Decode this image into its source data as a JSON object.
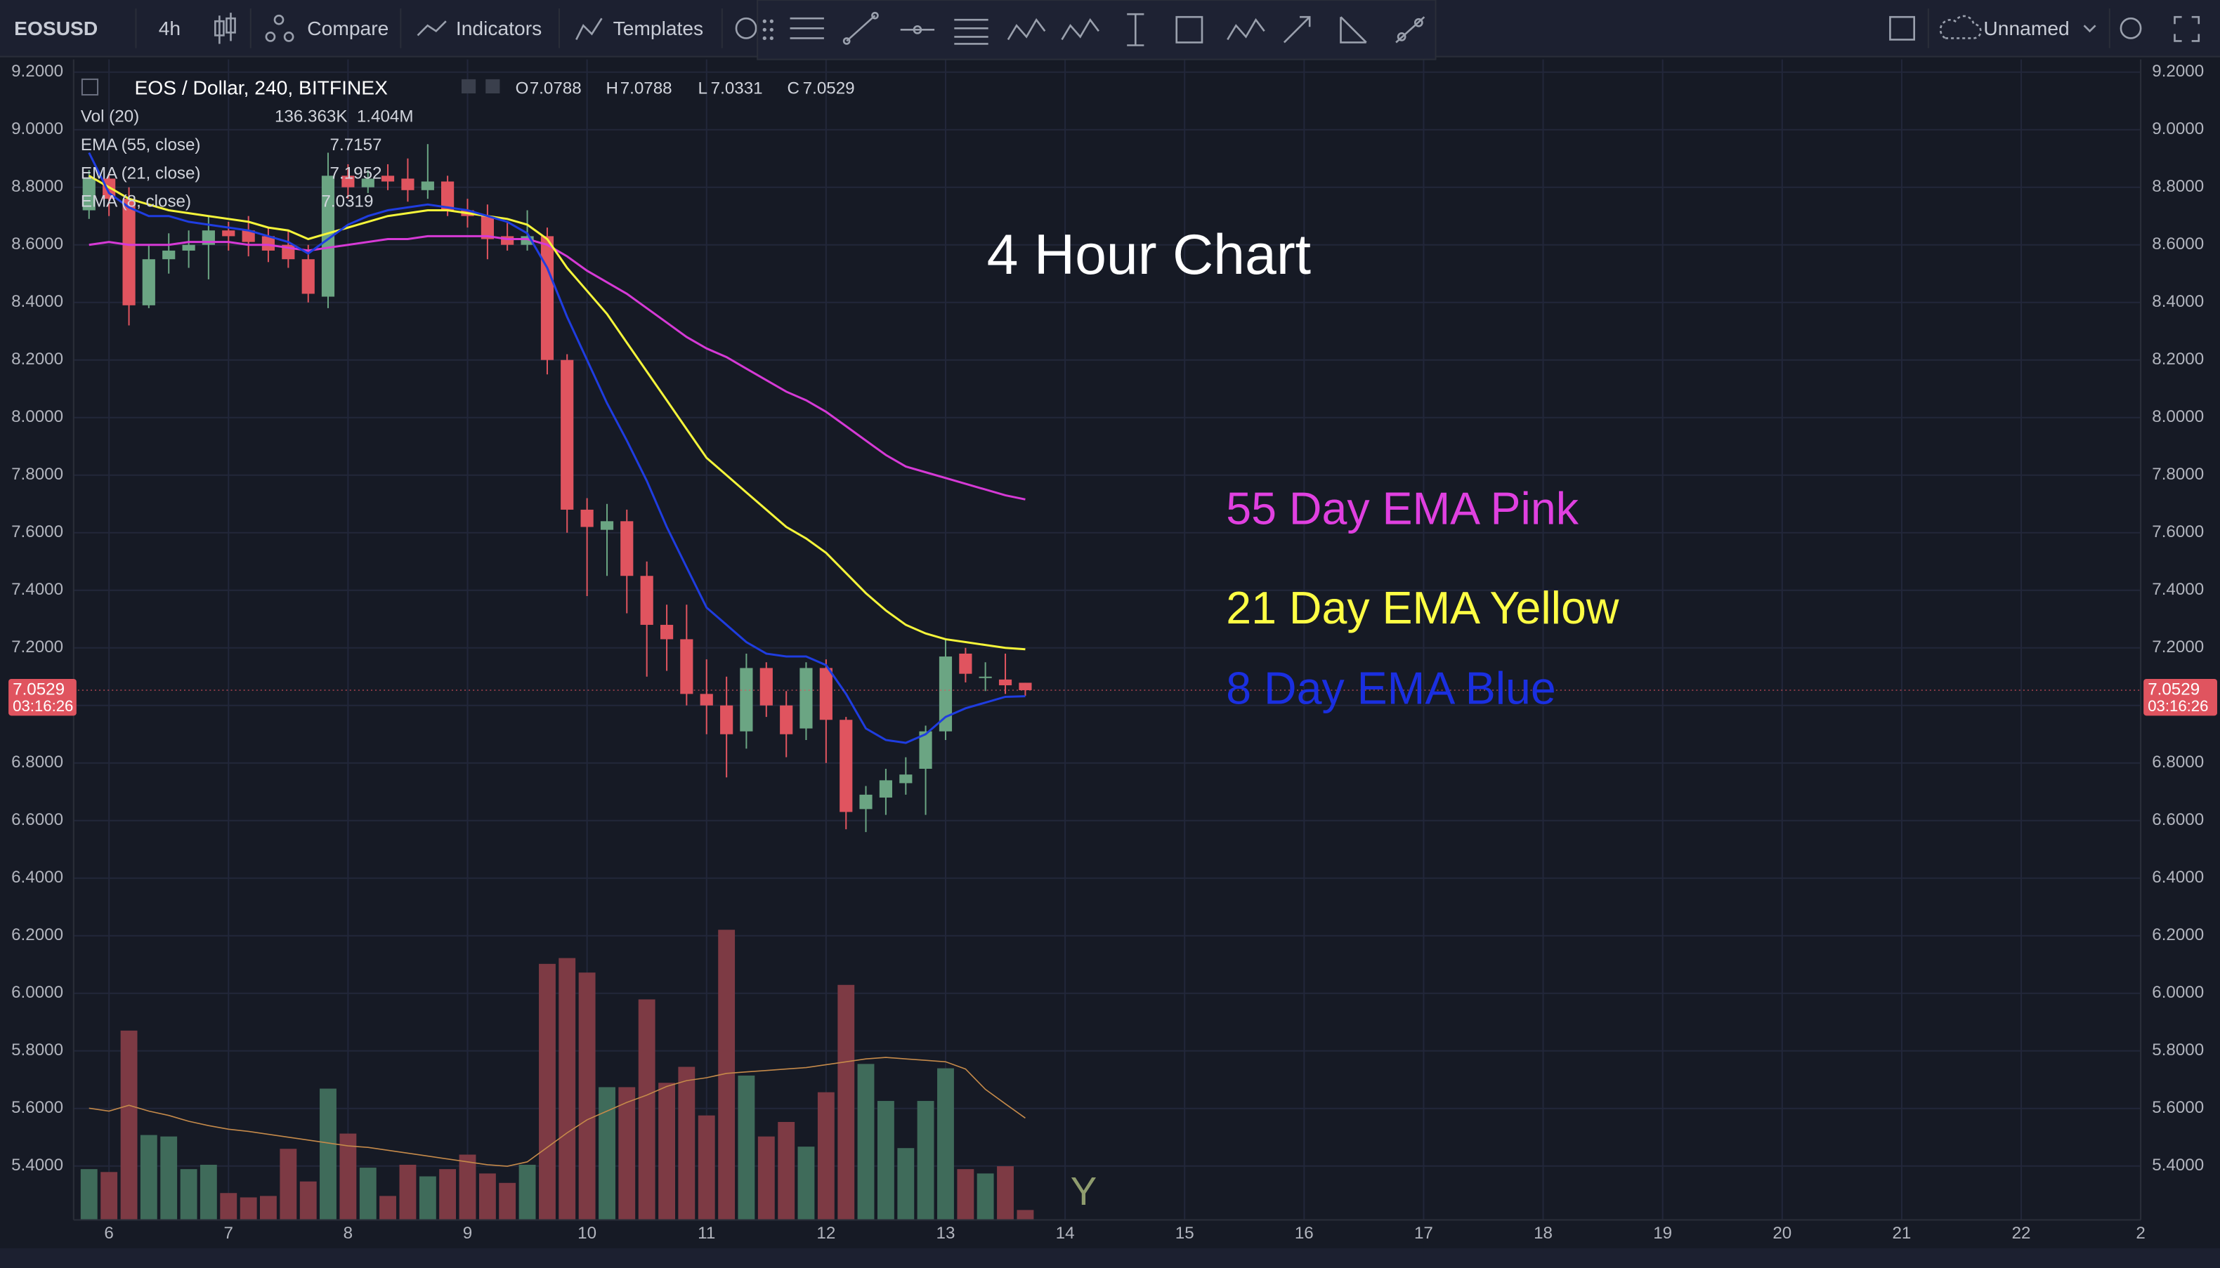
{
  "toolbar": {
    "symbol": "EOSUSD",
    "interval": "4h",
    "compare": "Compare",
    "indicators": "Indicators",
    "templates": "Templates",
    "layout_name": "Unnamed"
  },
  "chart_data": {
    "type": "candlestick",
    "title": "EOS / Dollar, 240, BITFINEX",
    "ohlc_labels": [
      "O",
      "H",
      "L",
      "C"
    ],
    "x": [
      5.833,
      6.0,
      6.167,
      6.333,
      6.5,
      6.667,
      6.833,
      7.0,
      7.167,
      7.333,
      7.5,
      7.667,
      7.833,
      8.0,
      8.167,
      8.333,
      8.5,
      8.667,
      8.833,
      9.0,
      9.167,
      9.333,
      9.5,
      9.667,
      9.833,
      10.0,
      10.167,
      10.333,
      10.5,
      10.667,
      10.833,
      11.0,
      11.167,
      11.333,
      11.5,
      11.667,
      11.833,
      12.0,
      12.167,
      12.333,
      12.5,
      12.667,
      12.833,
      13.0,
      13.167,
      13.333,
      13.5,
      13.667
    ],
    "open": [
      8.72,
      8.83,
      8.76,
      8.39,
      8.55,
      8.58,
      8.6,
      8.65,
      8.65,
      8.63,
      8.6,
      8.55,
      8.42,
      8.84,
      8.8,
      8.84,
      8.83,
      8.79,
      8.82,
      8.72,
      8.7,
      8.63,
      8.6,
      8.63,
      8.2,
      7.68,
      7.61,
      7.64,
      7.45,
      7.28,
      7.23,
      7.04,
      7.0,
      6.91,
      7.13,
      7.0,
      6.92,
      7.13,
      6.95,
      6.64,
      6.68,
      6.73,
      6.78,
      6.91,
      7.18,
      7.1,
      7.09,
      7.0788
    ],
    "high": [
      8.86,
      8.85,
      8.8,
      8.6,
      8.64,
      8.65,
      8.7,
      8.68,
      8.7,
      8.66,
      8.65,
      8.6,
      8.92,
      8.88,
      8.86,
      8.88,
      8.9,
      8.95,
      8.84,
      8.76,
      8.74,
      8.68,
      8.72,
      8.66,
      8.22,
      7.72,
      7.7,
      7.68,
      7.5,
      7.35,
      7.35,
      7.16,
      7.1,
      7.18,
      7.15,
      7.05,
      7.15,
      7.16,
      6.96,
      6.72,
      6.78,
      6.82,
      6.93,
      7.23,
      7.2,
      7.15,
      7.18,
      7.0788
    ],
    "low": [
      8.69,
      8.7,
      8.32,
      8.38,
      8.5,
      8.52,
      8.48,
      8.58,
      8.56,
      8.54,
      8.52,
      8.4,
      8.38,
      8.76,
      8.78,
      8.79,
      8.75,
      8.76,
      8.7,
      8.66,
      8.55,
      8.58,
      8.58,
      8.15,
      7.6,
      7.38,
      7.45,
      7.32,
      7.1,
      7.12,
      7.0,
      6.9,
      6.75,
      6.85,
      6.96,
      6.82,
      6.88,
      6.8,
      6.57,
      6.56,
      6.62,
      6.69,
      6.62,
      6.88,
      7.08,
      7.05,
      7.04,
      7.0331
    ],
    "close": [
      8.83,
      8.76,
      8.39,
      8.55,
      8.58,
      8.6,
      8.65,
      8.63,
      8.61,
      8.58,
      8.55,
      8.43,
      8.84,
      8.8,
      8.83,
      8.82,
      8.79,
      8.82,
      8.72,
      8.7,
      8.62,
      8.6,
      8.63,
      8.2,
      7.68,
      7.62,
      7.64,
      7.45,
      7.28,
      7.23,
      7.04,
      7.0,
      6.9,
      7.13,
      7.0,
      6.9,
      7.13,
      6.95,
      6.63,
      6.69,
      6.74,
      6.76,
      6.91,
      7.17,
      7.11,
      7.1,
      7.07,
      7.0529
    ],
    "up_color": "#6ba583",
    "down_color": "#e0545f",
    "series": [
      {
        "name": "EMA (55, close)",
        "color": "#d63ad6",
        "values": [
          8.6,
          8.61,
          8.6,
          8.6,
          8.6,
          8.61,
          8.61,
          8.61,
          8.6,
          8.6,
          8.59,
          8.58,
          8.59,
          8.6,
          8.61,
          8.62,
          8.62,
          8.63,
          8.63,
          8.63,
          8.63,
          8.62,
          8.62,
          8.6,
          8.56,
          8.51,
          8.47,
          8.43,
          8.38,
          8.33,
          8.28,
          8.24,
          8.21,
          8.17,
          8.13,
          8.09,
          8.06,
          8.02,
          7.97,
          7.92,
          7.87,
          7.83,
          7.81,
          7.79,
          7.77,
          7.75,
          7.73,
          7.7157
        ]
      },
      {
        "name": "EMA (21, close)",
        "color": "#f5f53a",
        "values": [
          8.84,
          8.8,
          8.76,
          8.74,
          8.72,
          8.71,
          8.7,
          8.69,
          8.68,
          8.66,
          8.65,
          8.62,
          8.64,
          8.66,
          8.68,
          8.7,
          8.71,
          8.72,
          8.72,
          8.71,
          8.7,
          8.69,
          8.67,
          8.62,
          8.52,
          8.44,
          8.36,
          8.26,
          8.16,
          8.06,
          7.96,
          7.86,
          7.8,
          7.74,
          7.68,
          7.62,
          7.58,
          7.53,
          7.46,
          7.39,
          7.33,
          7.28,
          7.25,
          7.23,
          7.22,
          7.21,
          7.2,
          7.1952
        ]
      },
      {
        "name": "EMA (8, close)",
        "color": "#1f3de0",
        "values": [
          8.92,
          8.78,
          8.73,
          8.7,
          8.7,
          8.68,
          8.67,
          8.66,
          8.65,
          8.63,
          8.61,
          8.57,
          8.62,
          8.67,
          8.7,
          8.72,
          8.73,
          8.74,
          8.73,
          8.72,
          8.7,
          8.68,
          8.64,
          8.52,
          8.35,
          8.2,
          8.05,
          7.92,
          7.78,
          7.62,
          7.48,
          7.34,
          7.28,
          7.22,
          7.18,
          7.17,
          7.17,
          7.14,
          7.04,
          6.92,
          6.88,
          6.87,
          6.9,
          6.96,
          6.99,
          7.01,
          7.03,
          7.0319
        ]
      }
    ],
    "volume": {
      "name": "Vol (20)",
      "values": [
        700000,
        660000,
        2610000,
        1170000,
        1150000,
        700000,
        760000,
        370000,
        310000,
        330000,
        980000,
        530000,
        1810000,
        1190000,
        720000,
        330000,
        760000,
        600000,
        700000,
        900000,
        640000,
        510000,
        760000,
        3530000,
        3610000,
        3410000,
        1830000,
        1830000,
        3040000,
        1890000,
        2110000,
        1440000,
        4000000,
        1990000,
        1150000,
        1350000,
        1010000,
        1760000,
        3240000,
        2150000,
        1640000,
        990000,
        1640000,
        2090000,
        700000,
        640000,
        740000,
        136363
      ],
      "last_label": "136.363K",
      "ma": [
        1540000,
        1500000,
        1580000,
        1500000,
        1440000,
        1360000,
        1300000,
        1250000,
        1220000,
        1180000,
        1140000,
        1100000,
        1060000,
        1020000,
        1000000,
        960000,
        920000,
        880000,
        840000,
        800000,
        760000,
        740000,
        800000,
        1000000,
        1200000,
        1380000,
        1500000,
        1620000,
        1720000,
        1840000,
        1920000,
        1960000,
        2020000,
        2040000,
        2060000,
        2080000,
        2100000,
        2140000,
        2180000,
        2220000,
        2240000,
        2220000,
        2200000,
        2180000,
        2080000,
        1800000,
        1600000,
        1404000
      ],
      "ma_last_label": "1.404M",
      "up_color": "#3f6b5a",
      "down_color": "#7d3a44",
      "ma_color": "#c58a4a"
    },
    "volume_lim": [
      0,
      16000000
    ],
    "xlim": [
      5.704,
      23.0
    ],
    "ylim": [
      5.213,
      9.244
    ],
    "xticks": [
      6,
      7,
      8,
      9,
      10,
      11,
      12,
      13,
      14,
      15,
      16,
      17,
      18,
      19,
      20,
      21,
      22,
      {
        "value": 23,
        "label": "2"
      }
    ],
    "yticks": [
      {
        "value": 5.4,
        "label": "5.4000"
      },
      {
        "value": 5.6,
        "label": "5.6000"
      },
      {
        "value": 5.8,
        "label": "5.8000"
      },
      {
        "value": 6.0,
        "label": "6.0000"
      },
      {
        "value": 6.2,
        "label": "6.2000"
      },
      {
        "value": 6.4,
        "label": "6.4000"
      },
      {
        "value": 6.6,
        "label": "6.6000"
      },
      {
        "value": 6.8,
        "label": "6.8000"
      },
      {
        "value": 7.0,
        "label": "7.0000"
      },
      {
        "value": 7.2,
        "label": "7.2000"
      },
      {
        "value": 7.4,
        "label": "7.4000"
      },
      {
        "value": 7.6,
        "label": "7.6000"
      },
      {
        "value": 7.8,
        "label": "7.8000"
      },
      {
        "value": 8.0,
        "label": "8.0000"
      },
      {
        "value": 8.2,
        "label": "8.2000"
      },
      {
        "value": 8.4,
        "label": "8.4000"
      },
      {
        "value": 8.6,
        "label": "8.6000"
      },
      {
        "value": 8.8,
        "label": "8.8000"
      },
      {
        "value": 9.0,
        "label": "9.0000"
      },
      {
        "value": 9.2,
        "label": "9.2000"
      }
    ],
    "grid": true,
    "countdown": "03:16:26",
    "annotations": [
      {
        "text": "4 Hour Chart",
        "color": "#ffffff"
      },
      {
        "text": "55 Day EMA Pink",
        "color": "#e040e0"
      },
      {
        "text": "21 Day EMA Yellow",
        "color": "#ffff44"
      },
      {
        "text": "8 Day EMA Blue",
        "color": "#1a2fe0"
      },
      {
        "text": "Y",
        "color": "#8f9c6e"
      }
    ]
  }
}
